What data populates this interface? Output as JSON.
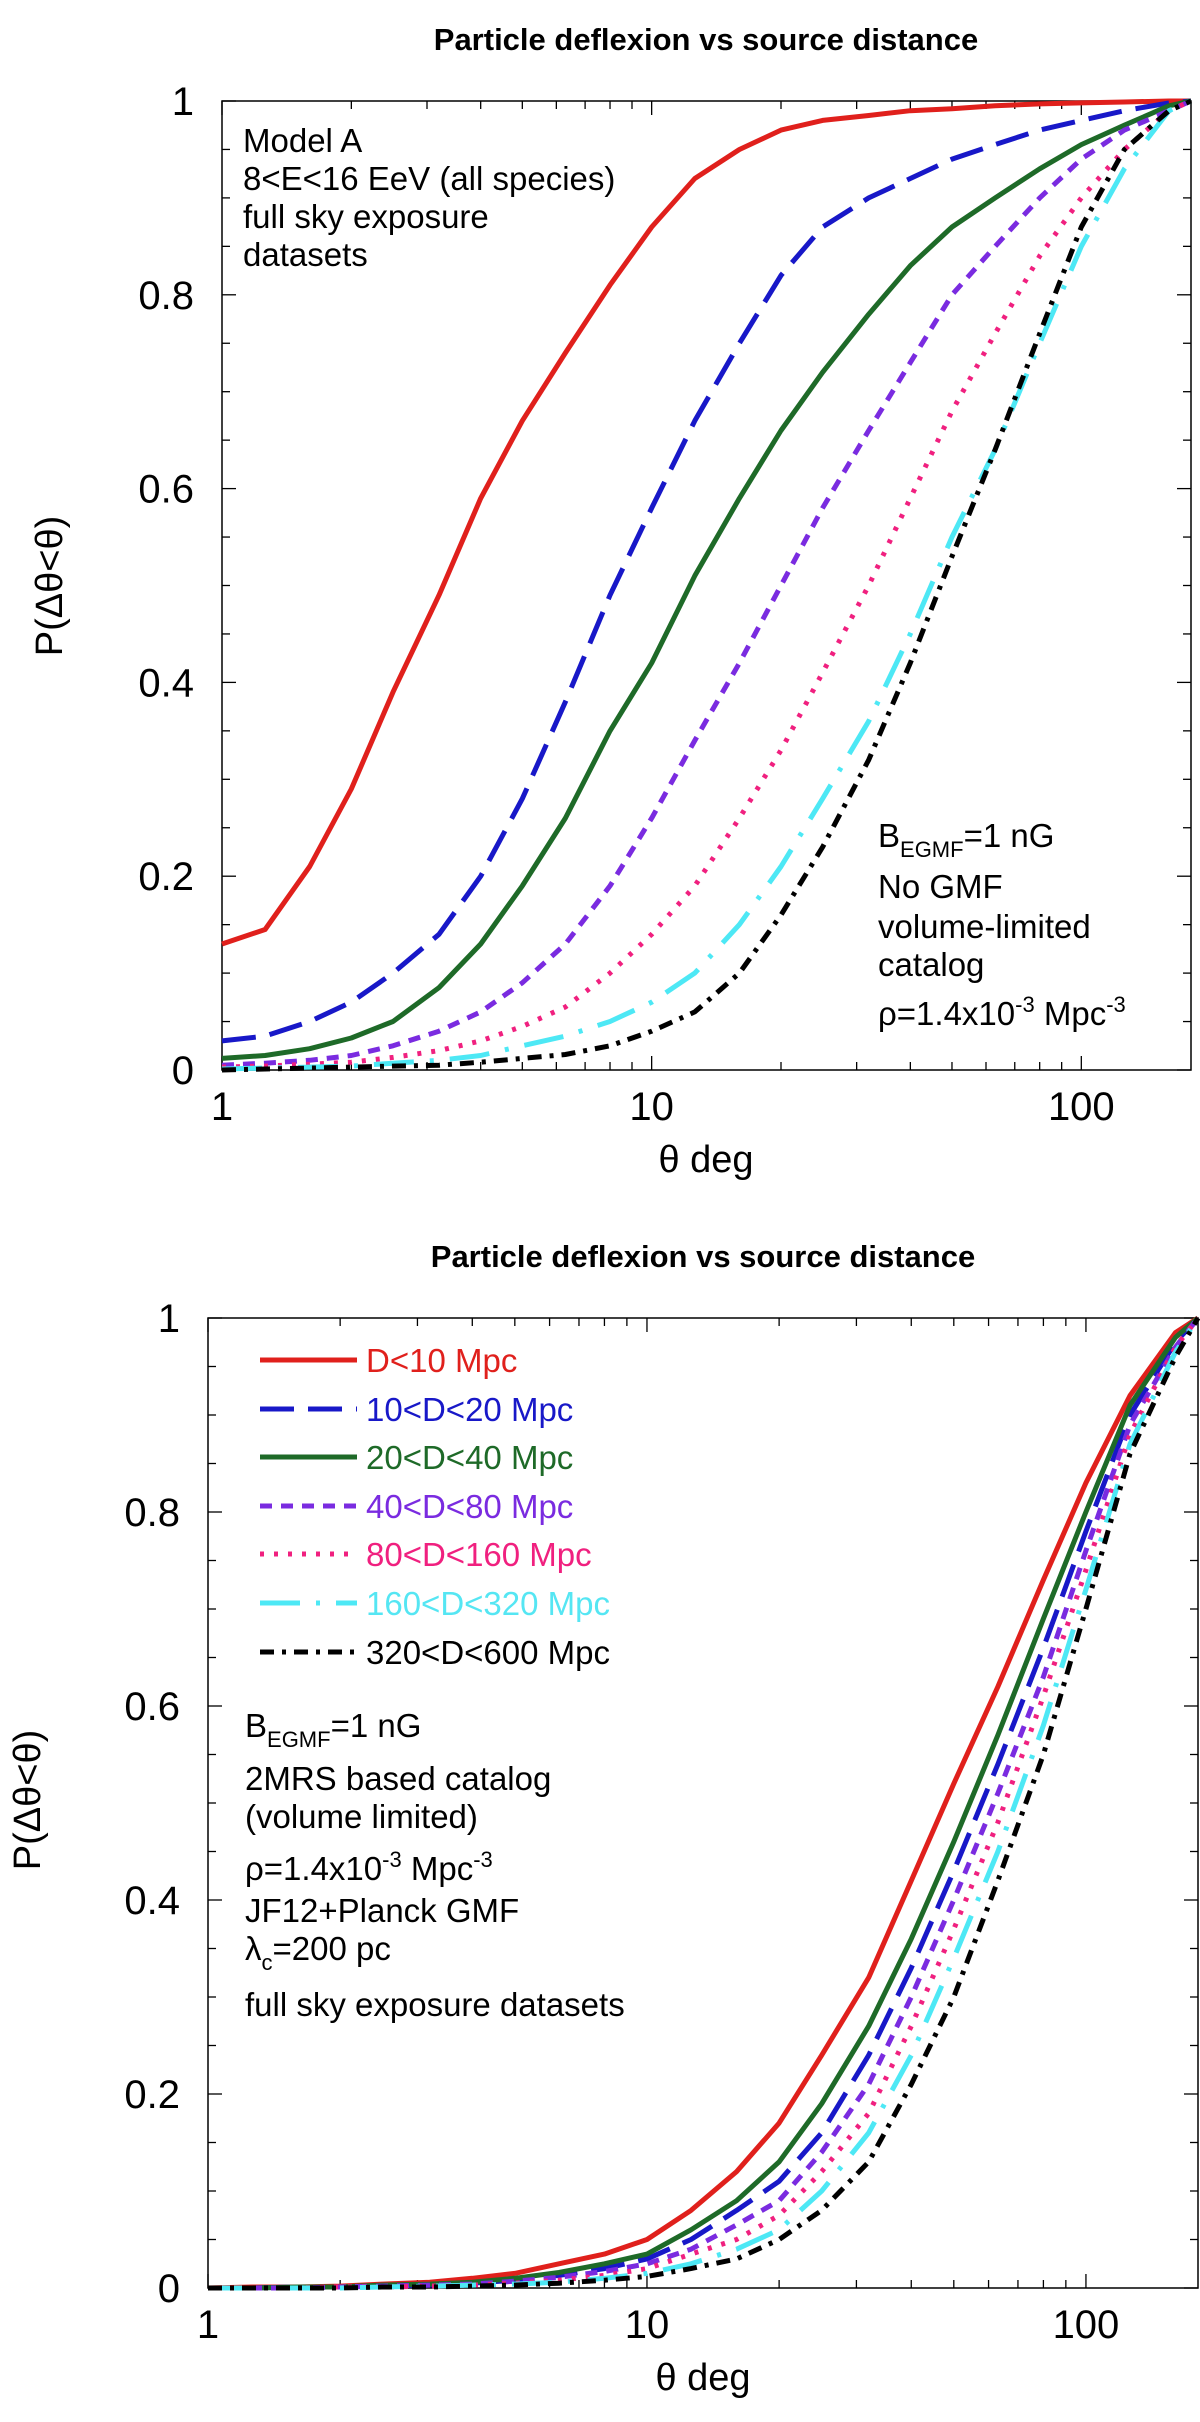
{
  "chart_data": [
    {
      "type": "line",
      "title": "Particle deflexion vs source distance",
      "xlabel": "θ deg",
      "ylabel": "P(Δθ<θ)",
      "xscale": "log",
      "xlim": [
        1,
        180
      ],
      "ylim": [
        0,
        1
      ],
      "xticks": [
        "1",
        "10",
        "100"
      ],
      "yticks": [
        "0",
        "0.2",
        "0.4",
        "0.6",
        "0.8",
        "1"
      ],
      "x": [
        1,
        1.26,
        1.6,
        2,
        2.5,
        3.2,
        4,
        5,
        6.3,
        8,
        10,
        12.6,
        16,
        20,
        25,
        32,
        40,
        50,
        63,
        80,
        100,
        126,
        160,
        180
      ],
      "series": [
        {
          "name": "D<10 Mpc",
          "color": "#e0201c",
          "dash": "solid",
          "values": [
            0.13,
            0.145,
            0.21,
            0.29,
            0.39,
            0.49,
            0.59,
            0.67,
            0.74,
            0.81,
            0.87,
            0.92,
            0.95,
            0.97,
            0.98,
            0.985,
            0.99,
            0.992,
            0.995,
            0.997,
            0.998,
            0.999,
            1,
            1
          ]
        },
        {
          "name": "10<D<20 Mpc",
          "color": "#1818c8",
          "dash": "longdash",
          "values": [
            0.03,
            0.035,
            0.05,
            0.07,
            0.1,
            0.14,
            0.2,
            0.28,
            0.38,
            0.49,
            0.58,
            0.67,
            0.75,
            0.82,
            0.87,
            0.9,
            0.92,
            0.94,
            0.955,
            0.97,
            0.98,
            0.99,
            0.998,
            1
          ]
        },
        {
          "name": "20<D<40 Mpc",
          "color": "#1e6a28",
          "dash": "solid",
          "values": [
            0.012,
            0.015,
            0.022,
            0.033,
            0.05,
            0.085,
            0.13,
            0.19,
            0.26,
            0.35,
            0.42,
            0.51,
            0.59,
            0.66,
            0.72,
            0.78,
            0.83,
            0.87,
            0.9,
            0.93,
            0.955,
            0.975,
            0.995,
            1
          ]
        },
        {
          "name": "40<D<80 Mpc",
          "color": "#7a2be0",
          "dash": "shortdash",
          "values": [
            0.005,
            0.007,
            0.01,
            0.015,
            0.025,
            0.04,
            0.06,
            0.09,
            0.13,
            0.19,
            0.26,
            0.34,
            0.42,
            0.5,
            0.58,
            0.66,
            0.73,
            0.8,
            0.85,
            0.9,
            0.94,
            0.97,
            0.99,
            1
          ]
        },
        {
          "name": "80<D<160 Mpc",
          "color": "#f0207f",
          "dash": "dot",
          "values": [
            0.003,
            0.004,
            0.006,
            0.008,
            0.013,
            0.02,
            0.03,
            0.045,
            0.065,
            0.1,
            0.14,
            0.19,
            0.26,
            0.33,
            0.41,
            0.5,
            0.59,
            0.68,
            0.76,
            0.84,
            0.9,
            0.95,
            0.99,
            1
          ]
        },
        {
          "name": "160<D<320 Mpc",
          "color": "#4de8f5",
          "dash": "dashdot-long",
          "values": [
            0.001,
            0.002,
            0.003,
            0.004,
            0.007,
            0.01,
            0.015,
            0.025,
            0.035,
            0.05,
            0.07,
            0.1,
            0.15,
            0.21,
            0.28,
            0.36,
            0.45,
            0.55,
            0.64,
            0.75,
            0.85,
            0.93,
            0.99,
            1
          ]
        },
        {
          "name": "320<D<600 Mpc",
          "color": "#000000",
          "dash": "dashdot",
          "values": [
            0,
            0.001,
            0.002,
            0.003,
            0.004,
            0.005,
            0.008,
            0.012,
            0.016,
            0.025,
            0.04,
            0.06,
            0.1,
            0.16,
            0.23,
            0.32,
            0.42,
            0.53,
            0.64,
            0.76,
            0.87,
            0.95,
            0.99,
            1
          ]
        }
      ],
      "annotations": {
        "model": "Model A",
        "energy": "8<E<16 EeV  (all species)",
        "exposure1": "full sky exposure",
        "exposure2": "datasets",
        "b_main": "B",
        "b_sub": "EGMF",
        "b_rest": "=1 nG",
        "gmf": "No GMF",
        "catalog1": "volume-limited",
        "catalog2": "catalog",
        "rho_a": "ρ=1.4x10",
        "rho_exp1": "-3",
        "rho_b": " Mpc",
        "rho_exp2": "-3"
      }
    },
    {
      "type": "line",
      "title": "Particle deflexion vs source distance",
      "xlabel": "θ deg",
      "ylabel": "P(Δθ<θ)",
      "xscale": "log",
      "xlim": [
        1,
        180
      ],
      "ylim": [
        0,
        1
      ],
      "xticks": [
        "1",
        "10",
        "100"
      ],
      "yticks": [
        "0",
        "0.2",
        "0.4",
        "0.6",
        "0.8",
        "1"
      ],
      "legend_position": "top-left",
      "x": [
        1,
        1.26,
        1.6,
        2,
        2.5,
        3.2,
        4,
        5,
        6.3,
        8,
        10,
        12.6,
        16,
        20,
        25,
        32,
        40,
        50,
        63,
        80,
        100,
        126,
        160,
        180
      ],
      "series": [
        {
          "name": "D<10 Mpc",
          "color": "#e0201c",
          "dash": "solid",
          "values": [
            0,
            0.001,
            0.001,
            0.002,
            0.004,
            0.006,
            0.01,
            0.015,
            0.025,
            0.035,
            0.05,
            0.08,
            0.12,
            0.17,
            0.24,
            0.32,
            0.42,
            0.52,
            0.62,
            0.73,
            0.83,
            0.92,
            0.985,
            1
          ]
        },
        {
          "name": "10<D<20 Mpc",
          "color": "#1818c8",
          "dash": "longdash",
          "values": [
            0,
            0,
            0.001,
            0.001,
            0.002,
            0.003,
            0.005,
            0.008,
            0.013,
            0.02,
            0.03,
            0.05,
            0.08,
            0.11,
            0.16,
            0.24,
            0.33,
            0.43,
            0.54,
            0.66,
            0.78,
            0.9,
            0.975,
            1
          ]
        },
        {
          "name": "20<D<40 Mpc",
          "color": "#1e6a28",
          "dash": "solid",
          "values": [
            0,
            0,
            0.001,
            0.001,
            0.003,
            0.004,
            0.006,
            0.01,
            0.016,
            0.025,
            0.035,
            0.06,
            0.09,
            0.13,
            0.19,
            0.27,
            0.36,
            0.46,
            0.57,
            0.69,
            0.8,
            0.91,
            0.98,
            1
          ]
        },
        {
          "name": "40<D<80 Mpc",
          "color": "#7a2be0",
          "dash": "shortdash",
          "values": [
            0,
            0,
            0,
            0.001,
            0.002,
            0.003,
            0.004,
            0.007,
            0.011,
            0.017,
            0.025,
            0.04,
            0.065,
            0.09,
            0.14,
            0.21,
            0.3,
            0.4,
            0.51,
            0.63,
            0.76,
            0.89,
            0.97,
            1
          ]
        },
        {
          "name": "80<D<160 Mpc",
          "color": "#f0207f",
          "dash": "dot",
          "values": [
            0,
            0,
            0,
            0.001,
            0.001,
            0.002,
            0.003,
            0.005,
            0.008,
            0.013,
            0.02,
            0.035,
            0.05,
            0.075,
            0.12,
            0.18,
            0.27,
            0.37,
            0.48,
            0.61,
            0.74,
            0.88,
            0.97,
            1
          ]
        },
        {
          "name": "160<D<320 Mpc",
          "color": "#4de8f5",
          "dash": "dashdot-long",
          "values": [
            0,
            0,
            0,
            0,
            0.001,
            0.002,
            0.003,
            0.004,
            0.006,
            0.01,
            0.015,
            0.025,
            0.04,
            0.06,
            0.1,
            0.16,
            0.24,
            0.34,
            0.45,
            0.58,
            0.72,
            0.87,
            0.965,
            1
          ]
        },
        {
          "name": "320<D<600 Mpc",
          "color": "#000000",
          "dash": "dashdot",
          "values": [
            0,
            0,
            0,
            0,
            0.001,
            0.001,
            0.002,
            0.003,
            0.005,
            0.008,
            0.012,
            0.02,
            0.03,
            0.05,
            0.08,
            0.13,
            0.21,
            0.3,
            0.42,
            0.55,
            0.7,
            0.86,
            0.96,
            1
          ]
        }
      ],
      "annotations": {
        "b_main": "B",
        "b_sub": "EGMF",
        "b_rest": "=1 nG",
        "catalog1": "2MRS based catalog",
        "catalog2": "(volume limited)",
        "rho_a": "ρ=1.4x10",
        "rho_exp1": "-3",
        "rho_b": " Mpc",
        "rho_exp2": "-3",
        "gmf": "JF12+Planck GMF",
        "lambda_main": "λ",
        "lambda_sub": "c",
        "lambda_rest": "=200 pc",
        "exposure": "full sky exposure datasets"
      }
    }
  ]
}
